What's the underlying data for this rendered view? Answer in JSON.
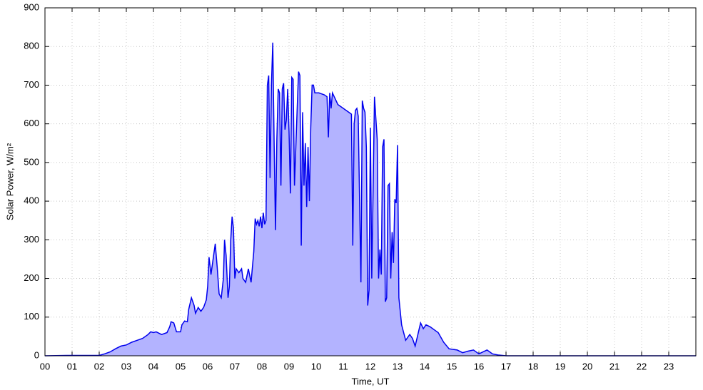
{
  "chart_data": {
    "type": "area",
    "x_label": "Time, UT",
    "y_label": "Solar Power, W/m²",
    "xlim": [
      0,
      24
    ],
    "ylim": [
      0,
      900
    ],
    "xticks": [
      {
        "value": 0,
        "label": "00"
      },
      {
        "value": 1,
        "label": "01"
      },
      {
        "value": 2,
        "label": "02"
      },
      {
        "value": 3,
        "label": "03"
      },
      {
        "value": 4,
        "label": "04"
      },
      {
        "value": 5,
        "label": "05"
      },
      {
        "value": 6,
        "label": "06"
      },
      {
        "value": 7,
        "label": "07"
      },
      {
        "value": 8,
        "label": "08"
      },
      {
        "value": 9,
        "label": "09"
      },
      10,
      11,
      12,
      13,
      14,
      15,
      16,
      17,
      18,
      19,
      20,
      21,
      22,
      23
    ],
    "yticks": [
      0,
      100,
      200,
      300,
      400,
      500,
      600,
      700,
      800,
      900
    ],
    "grid": true,
    "x": [
      0,
      0.8,
      1.5,
      2.0,
      2.2,
      2.4,
      2.6,
      2.8,
      3.0,
      3.2,
      3.4,
      3.6,
      3.8,
      3.9,
      4.0,
      4.1,
      4.3,
      4.5,
      4.6,
      4.65,
      4.75,
      4.85,
      5.0,
      5.05,
      5.15,
      5.25,
      5.3,
      5.4,
      5.5,
      5.55,
      5.65,
      5.75,
      5.85,
      5.95,
      6.0,
      6.05,
      6.12,
      6.2,
      6.28,
      6.35,
      6.42,
      6.5,
      6.58,
      6.62,
      6.68,
      6.75,
      6.8,
      6.85,
      6.9,
      6.95,
      7.0,
      7.05,
      7.15,
      7.25,
      7.3,
      7.4,
      7.5,
      7.6,
      7.7,
      7.75,
      7.8,
      7.85,
      7.9,
      7.95,
      8.0,
      8.05,
      8.1,
      8.15,
      8.2,
      8.25,
      8.3,
      8.35,
      8.4,
      8.45,
      8.5,
      8.55,
      8.6,
      8.65,
      8.7,
      8.75,
      8.8,
      8.85,
      8.9,
      8.95,
      9.0,
      9.05,
      9.1,
      9.15,
      9.2,
      9.3,
      9.35,
      9.4,
      9.45,
      9.5,
      9.55,
      9.6,
      9.65,
      9.7,
      9.75,
      9.8,
      9.85,
      9.9,
      9.95,
      10.1,
      10.3,
      10.4,
      10.45,
      10.5,
      10.55,
      10.6,
      10.8,
      11.0,
      11.2,
      11.3,
      11.35,
      11.4,
      11.45,
      11.5,
      11.55,
      11.65,
      11.7,
      11.75,
      11.8,
      11.85,
      11.9,
      11.95,
      12.0,
      12.05,
      12.15,
      12.25,
      12.3,
      12.35,
      12.4,
      12.45,
      12.5,
      12.55,
      12.6,
      12.65,
      12.7,
      12.75,
      12.8,
      12.85,
      12.9,
      12.95,
      13.0,
      13.05,
      13.15,
      13.3,
      13.45,
      13.55,
      13.65,
      13.75,
      13.85,
      13.95,
      14.05,
      14.2,
      14.4,
      14.5,
      14.7,
      14.9,
      15.2,
      15.4,
      15.6,
      15.8,
      16.0,
      16.3,
      16.5,
      16.7,
      17.0,
      24
    ],
    "series": [
      {
        "color": "#0000ee",
        "fill_color": "#b3b3ff",
        "values": [
          0,
          1,
          1,
          1,
          5,
          10,
          18,
          25,
          28,
          35,
          40,
          45,
          55,
          62,
          60,
          62,
          55,
          60,
          75,
          88,
          85,
          62,
          62,
          80,
          90,
          88,
          120,
          150,
          130,
          110,
          125,
          115,
          125,
          145,
          180,
          255,
          210,
          250,
          290,
          230,
          160,
          150,
          200,
          300,
          260,
          150,
          180,
          300,
          360,
          330,
          200,
          225,
          215,
          225,
          200,
          190,
          225,
          190,
          270,
          355,
          340,
          350,
          335,
          360,
          330,
          370,
          340,
          350,
          700,
          725,
          460,
          700,
          810,
          550,
          325,
          560,
          690,
          680,
          440,
          690,
          705,
          585,
          610,
          690,
          580,
          420,
          720,
          715,
          440,
          640,
          735,
          725,
          285,
          630,
          440,
          550,
          385,
          540,
          400,
          590,
          700,
          700,
          680,
          680,
          675,
          670,
          565,
          680,
          640,
          680,
          650,
          640,
          630,
          625,
          285,
          600,
          635,
          640,
          620,
          190,
          660,
          640,
          630,
          540,
          130,
          170,
          590,
          200,
          670,
          560,
          200,
          275,
          210,
          540,
          560,
          140,
          150,
          440,
          445,
          200,
          320,
          240,
          405,
          395,
          545,
          150,
          80,
          40,
          55,
          45,
          25,
          55,
          85,
          70,
          80,
          75,
          65,
          60,
          35,
          18,
          15,
          8,
          12,
          15,
          5,
          15,
          5,
          2,
          0,
          0
        ]
      }
    ]
  }
}
